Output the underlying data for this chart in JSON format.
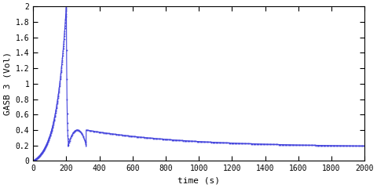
{
  "title": "",
  "xlabel": "time (s)",
  "ylabel": "GASB 3 (Vol)",
  "xlim": [
    0,
    2000
  ],
  "ylim": [
    0,
    2
  ],
  "xticks": [
    0,
    200,
    400,
    600,
    800,
    1000,
    1200,
    1400,
    1600,
    1800,
    2000
  ],
  "yticks": [
    0,
    0.2,
    0.4,
    0.6,
    0.8,
    1.0,
    1.2,
    1.4,
    1.6,
    1.8,
    2.0
  ],
  "line_color": "#4444dd",
  "background_color": "#ffffff",
  "figsize": [
    4.8,
    2.4
  ],
  "dpi": 100
}
